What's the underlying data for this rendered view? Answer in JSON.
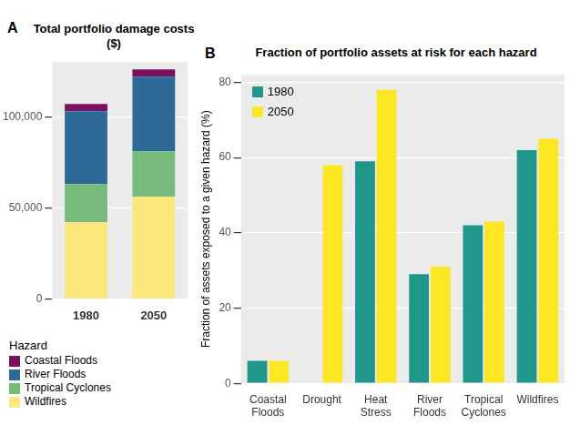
{
  "chart_data": [
    {
      "type": "bar",
      "panel_label": "A",
      "title": "Total portfolio damage costs ($)",
      "categories": [
        "1980",
        "2050"
      ],
      "stacked": true,
      "series": [
        {
          "name": "Wildfires",
          "color": "#FCE77D",
          "values": [
            42000,
            56000
          ]
        },
        {
          "name": "Tropical Cyclones",
          "color": "#78BA7C",
          "values": [
            21000,
            25000
          ]
        },
        {
          "name": "River Floods",
          "color": "#2E6A97",
          "values": [
            40000,
            41000
          ]
        },
        {
          "name": "Coastal Floods",
          "color": "#7A1060",
          "values": [
            4000,
            4000
          ]
        }
      ],
      "ylim": [
        0,
        130000
      ],
      "yticks": [
        0,
        {
          "value": 50000,
          "label": "50,000"
        },
        {
          "value": 100000,
          "label": "100,000"
        }
      ],
      "grid": true,
      "legend": "bottom left",
      "legend_title": "Hazard"
    },
    {
      "type": "bar",
      "panel_label": "B",
      "title": "Fraction of portfolio assets at risk for each hazard",
      "ylabel": "Fraction of assets exposed to a given hazard (%)",
      "categories": [
        "Coastal Floods",
        "Drought",
        "Heat Stress",
        "River Floods",
        "Tropical Cyclones",
        "Wildfires"
      ],
      "series": [
        {
          "name": "1980",
          "color": "#21968A",
          "values": [
            6,
            null,
            59,
            29,
            42,
            62
          ]
        },
        {
          "name": "2050",
          "color": "#FDE725",
          "values": [
            6,
            58,
            78,
            31,
            43,
            65
          ]
        }
      ],
      "ylim": [
        0,
        82
      ],
      "yticks": [
        0,
        20,
        40,
        60,
        80
      ],
      "grid": true,
      "legend": "top left"
    }
  ]
}
